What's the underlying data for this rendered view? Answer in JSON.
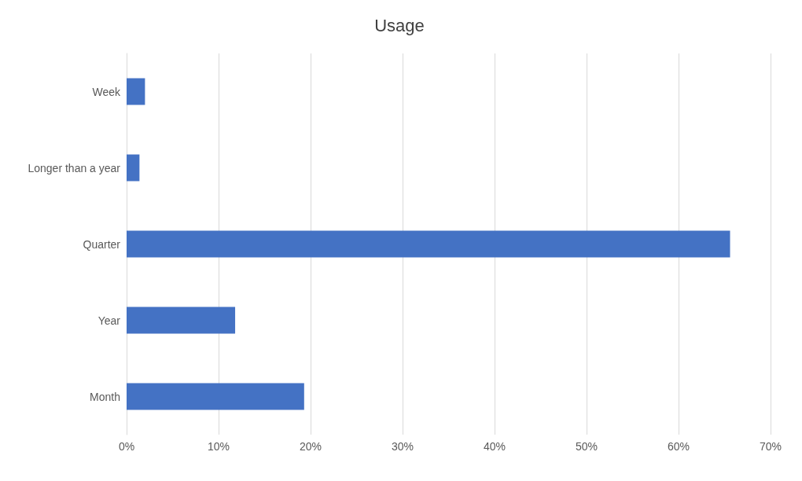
{
  "chart_data": {
    "type": "bar",
    "orientation": "horizontal",
    "title": "Usage",
    "categories": [
      "Week",
      "Longer than a year",
      "Quarter",
      "Year",
      "Month"
    ],
    "values": [
      2,
      1.4,
      65.6,
      11.8,
      19.3
    ],
    "color": "#4472c4",
    "xlim": [
      0,
      70
    ],
    "xticks": [
      {
        "value": 0,
        "label": "0%"
      },
      {
        "value": 10,
        "label": "10%"
      },
      {
        "value": 20,
        "label": "20%"
      },
      {
        "value": 30,
        "label": "30%"
      },
      {
        "value": 40,
        "label": "40%"
      },
      {
        "value": 50,
        "label": "50%"
      },
      {
        "value": 60,
        "label": "60%"
      },
      {
        "value": 70,
        "label": "70%"
      }
    ],
    "grid": "x"
  }
}
